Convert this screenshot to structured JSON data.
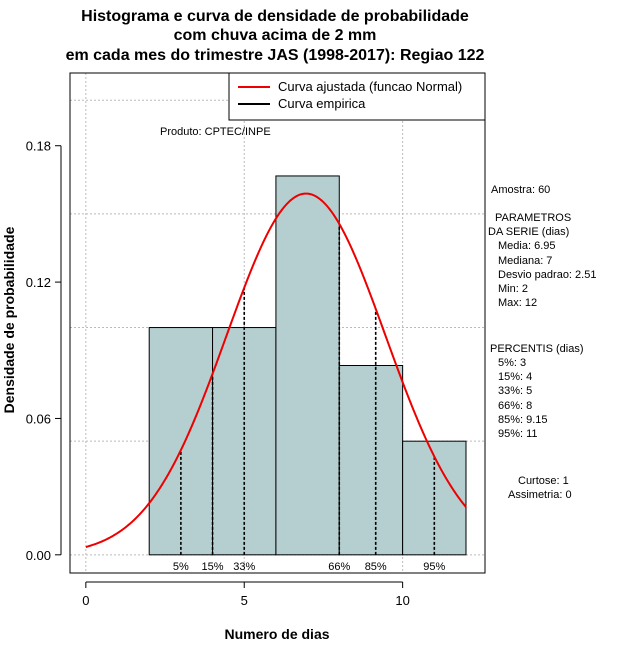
{
  "chart_data": {
    "type": "bar",
    "title_lines": [
      "Histograma e curva de densidade de probabilidade",
      "com chuva acima de 2 mm",
      "em cada mes do trimestre JAS (1998-2017): Regiao 122"
    ],
    "xlabel": "Numero de dias",
    "ylabel": "Densidade de probabilidade",
    "xlim": [
      -0.5,
      12.6
    ],
    "ylim": [
      -0.008,
      0.212
    ],
    "x_ticks": [
      0,
      5,
      10
    ],
    "x_tick_labels": [
      "0",
      "5",
      "10"
    ],
    "y_ticks": [
      0.0,
      0.06,
      0.12,
      0.18
    ],
    "y_tick_labels": [
      "0.00",
      "0.06",
      "0.12",
      "0.18"
    ],
    "grid_y": [
      0.0,
      0.05,
      0.1,
      0.15,
      0.2
    ],
    "grid_x": [
      0,
      5,
      10
    ],
    "bins": [
      {
        "from": 2,
        "to": 4,
        "density": 0.1
      },
      {
        "from": 4,
        "to": 6,
        "density": 0.1
      },
      {
        "from": 6,
        "to": 8,
        "density": 0.1667
      },
      {
        "from": 8,
        "to": 10,
        "density": 0.0833
      },
      {
        "from": 10,
        "to": 12,
        "density": 0.05
      }
    ],
    "normal_curve": {
      "name": "Curva ajustada (funcao Normal)",
      "mean": 6.95,
      "sd": 2.51,
      "x_range": [
        0,
        12
      ],
      "color": "#ee0000"
    },
    "percentile_lines": [
      {
        "label": "5%",
        "x": 3
      },
      {
        "label": "15%",
        "x": 4
      },
      {
        "label": "33%",
        "x": 5
      },
      {
        "label": "66%",
        "x": 8
      },
      {
        "label": "85%",
        "x": 9.15
      },
      {
        "label": "95%",
        "x": 11
      }
    ],
    "legend": {
      "position": "top-right",
      "entries": [
        {
          "label": "Curva ajustada (funcao Normal)",
          "color": "#ee0000"
        },
        {
          "label": "Curva empirica",
          "color": "#000000"
        }
      ]
    },
    "annotation": "Produto: CPTEC/INPE",
    "colors": {
      "bar_fill": "#b5cfd0",
      "bar_stroke": "#000000",
      "grid": "#bbbbbb",
      "curve": "#ee0000"
    }
  },
  "stats": {
    "amostra": "Amostra: 60",
    "parametros": [
      "PARAMETROS",
      "DA SERIE (dias)",
      "Media: 6.95",
      "Mediana: 7",
      "Desvio padrao: 2.51",
      "Min: 2",
      "Max: 12"
    ],
    "percentis": [
      "PERCENTIS (dias)",
      "5%: 3",
      "15%: 4",
      "33%: 5",
      "66%: 8",
      "85%: 9.15",
      "95%: 11"
    ],
    "curtose": "Curtose: 1",
    "assimetria": "Assimetria: 0"
  }
}
